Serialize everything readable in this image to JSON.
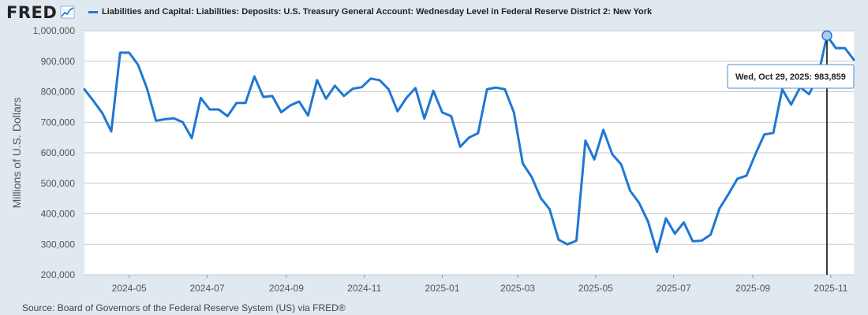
{
  "header": {
    "logo_text": "FRED",
    "logo_icon": "trend-chart-icon"
  },
  "colors": {
    "series": "#1f77d4",
    "grid": "#c9c9c9",
    "plot_bg": "#ffffff",
    "page_bg": "#e1e9f0",
    "crosshair": "#000000",
    "marker": "#aecbeb"
  },
  "tooltip": {
    "text": "Wed, Oct 29, 2025:  983,859"
  },
  "source_text": "Source: Board of Governors of the Federal Reserve System (US) via FRED®",
  "chart_data": {
    "type": "line",
    "title": "",
    "xlabel": "",
    "ylabel": "Millions of U.S. Dollars",
    "legend_position": "top",
    "grid": true,
    "ylim": [
      200000,
      1000000
    ],
    "xlim": [
      "2024-03-27",
      "2025-11-19"
    ],
    "y_ticks": [
      {
        "value": 200000,
        "label": "200,000"
      },
      {
        "value": 300000,
        "label": "300,000"
      },
      {
        "value": 400000,
        "label": "400,000"
      },
      {
        "value": 500000,
        "label": "500,000"
      },
      {
        "value": 600000,
        "label": "600,000"
      },
      {
        "value": 700000,
        "label": "700,000"
      },
      {
        "value": 800000,
        "label": "800,000"
      },
      {
        "value": 900000,
        "label": "900,000"
      },
      {
        "value": 1000000,
        "label": "1,000,000"
      }
    ],
    "x_ticks": [
      {
        "date": "2024-05-01",
        "label": "2024-05"
      },
      {
        "date": "2024-07-01",
        "label": "2024-07"
      },
      {
        "date": "2024-09-01",
        "label": "2024-09"
      },
      {
        "date": "2024-11-01",
        "label": "2024-11"
      },
      {
        "date": "2025-01-01",
        "label": "2025-01"
      },
      {
        "date": "2025-03-01",
        "label": "2025-03"
      },
      {
        "date": "2025-05-01",
        "label": "2025-05"
      },
      {
        "date": "2025-07-01",
        "label": "2025-07"
      },
      {
        "date": "2025-09-01",
        "label": "2025-09"
      },
      {
        "date": "2025-11-01",
        "label": "2025-11"
      }
    ],
    "highlight": {
      "date": "2025-10-29",
      "value": 983859
    },
    "series": [
      {
        "name": "Liabilities and Capital: Liabilities: Deposits: U.S. Treasury General Account: Wednesday Level in Federal Reserve District 2: New York",
        "points": [
          [
            "2024-03-27",
            808000
          ],
          [
            "2024-04-03",
            770000
          ],
          [
            "2024-04-10",
            730000
          ],
          [
            "2024-04-17",
            670000
          ],
          [
            "2024-04-24",
            928000
          ],
          [
            "2024-05-01",
            928000
          ],
          [
            "2024-05-08",
            888000
          ],
          [
            "2024-05-15",
            810000
          ],
          [
            "2024-05-22",
            705000
          ],
          [
            "2024-05-29",
            710000
          ],
          [
            "2024-06-05",
            713000
          ],
          [
            "2024-06-12",
            700000
          ],
          [
            "2024-06-19",
            648000
          ],
          [
            "2024-06-26",
            780000
          ],
          [
            "2024-07-03",
            742000
          ],
          [
            "2024-07-10",
            742000
          ],
          [
            "2024-07-17",
            720000
          ],
          [
            "2024-07-24",
            763000
          ],
          [
            "2024-07-31",
            763000
          ],
          [
            "2024-08-07",
            850000
          ],
          [
            "2024-08-14",
            783000
          ],
          [
            "2024-08-21",
            786000
          ],
          [
            "2024-08-28",
            733000
          ],
          [
            "2024-09-04",
            755000
          ],
          [
            "2024-09-11",
            768000
          ],
          [
            "2024-09-18",
            722000
          ],
          [
            "2024-09-25",
            838000
          ],
          [
            "2024-10-02",
            777000
          ],
          [
            "2024-10-09",
            820000
          ],
          [
            "2024-10-16",
            786000
          ],
          [
            "2024-10-23",
            810000
          ],
          [
            "2024-10-30",
            815000
          ],
          [
            "2024-11-06",
            843000
          ],
          [
            "2024-11-13",
            838000
          ],
          [
            "2024-11-20",
            808000
          ],
          [
            "2024-11-27",
            736000
          ],
          [
            "2024-12-04",
            780000
          ],
          [
            "2024-12-11",
            812000
          ],
          [
            "2024-12-18",
            712000
          ],
          [
            "2024-12-25",
            803000
          ],
          [
            "2025-01-01",
            732000
          ],
          [
            "2025-01-08",
            720000
          ],
          [
            "2025-01-15",
            620000
          ],
          [
            "2025-01-22",
            650000
          ],
          [
            "2025-01-29",
            664000
          ],
          [
            "2025-02-05",
            808000
          ],
          [
            "2025-02-12",
            814000
          ],
          [
            "2025-02-19",
            808000
          ],
          [
            "2025-02-26",
            733000
          ],
          [
            "2025-03-05",
            565000
          ],
          [
            "2025-03-12",
            520000
          ],
          [
            "2025-03-19",
            452000
          ],
          [
            "2025-03-26",
            415000
          ],
          [
            "2025-04-02",
            315000
          ],
          [
            "2025-04-09",
            300000
          ],
          [
            "2025-04-16",
            312000
          ],
          [
            "2025-04-23",
            640000
          ],
          [
            "2025-04-30",
            578000
          ],
          [
            "2025-05-07",
            675000
          ],
          [
            "2025-05-14",
            595000
          ],
          [
            "2025-05-21",
            562000
          ],
          [
            "2025-05-28",
            475000
          ],
          [
            "2025-06-04",
            436000
          ],
          [
            "2025-06-11",
            375000
          ],
          [
            "2025-06-18",
            275000
          ],
          [
            "2025-06-25",
            385000
          ],
          [
            "2025-07-02",
            335000
          ],
          [
            "2025-07-09",
            372000
          ],
          [
            "2025-07-16",
            310000
          ],
          [
            "2025-07-23",
            312000
          ],
          [
            "2025-07-30",
            332000
          ],
          [
            "2025-08-06",
            418000
          ],
          [
            "2025-08-13",
            465000
          ],
          [
            "2025-08-20",
            515000
          ],
          [
            "2025-08-27",
            525000
          ],
          [
            "2025-09-03",
            595000
          ],
          [
            "2025-09-10",
            660000
          ],
          [
            "2025-09-17",
            665000
          ],
          [
            "2025-09-24",
            808000
          ],
          [
            "2025-10-01",
            758000
          ],
          [
            "2025-10-08",
            815000
          ],
          [
            "2025-10-15",
            792000
          ],
          [
            "2025-10-22",
            850000
          ],
          [
            "2025-10-29",
            983859
          ],
          [
            "2025-11-05",
            943000
          ],
          [
            "2025-11-12",
            943000
          ],
          [
            "2025-11-19",
            905000
          ]
        ]
      }
    ]
  }
}
